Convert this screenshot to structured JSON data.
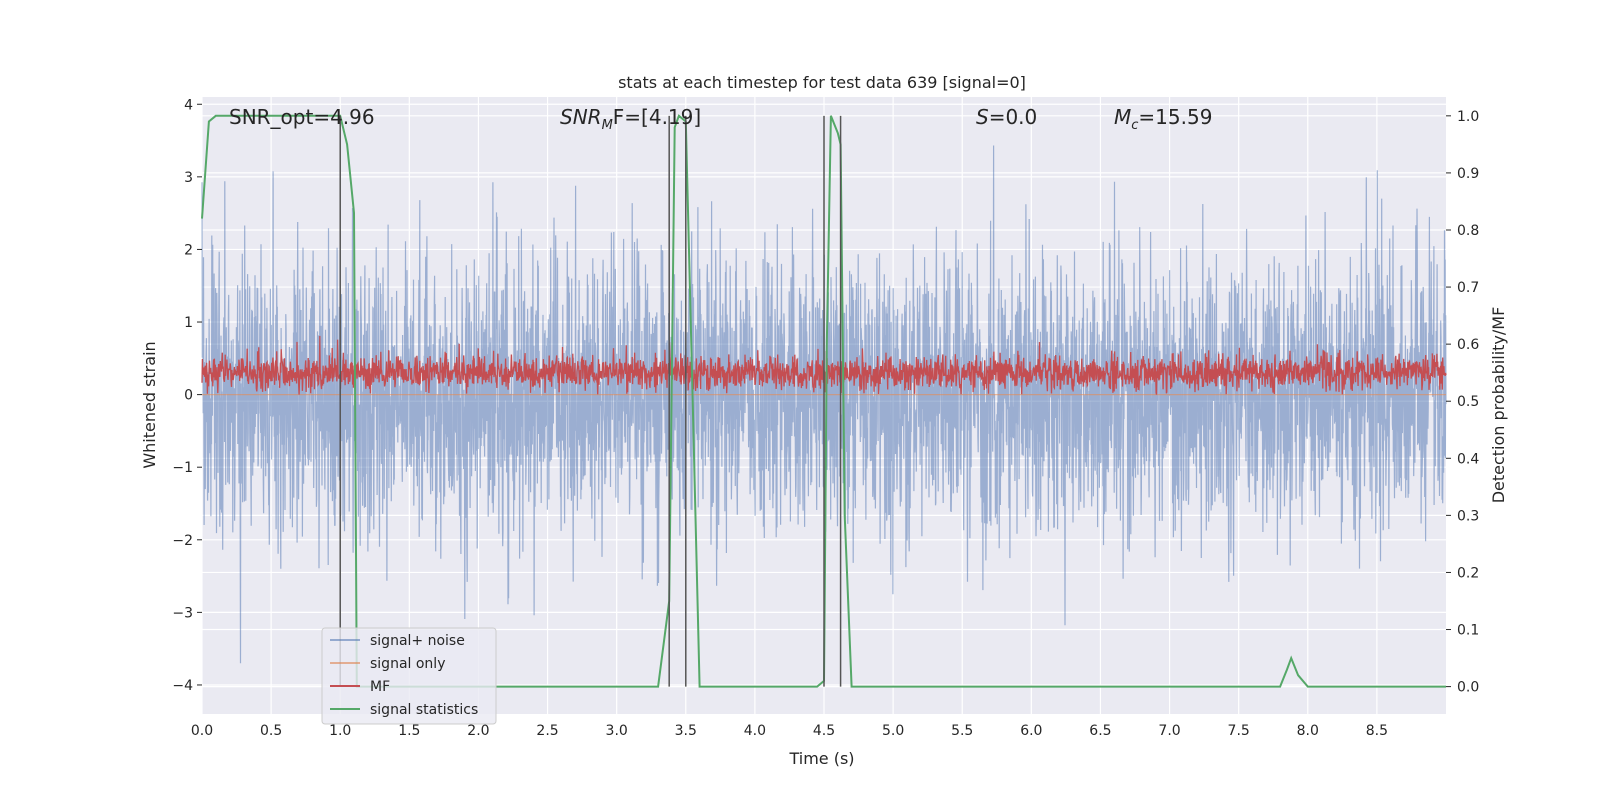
{
  "chart_data": {
    "type": "line",
    "title": "stats at each timestep for test data 639 [signal=0]",
    "xlabel": "Time (s)",
    "ylabel": "Whitened strain",
    "ylabel_right": "Detection probability/MF",
    "xlim": [
      0,
      9.0
    ],
    "ylim": [
      -4.4,
      4.1
    ],
    "ylim_right": [
      -0.048,
      1.033
    ],
    "x_ticks": [
      "0.0",
      "0.5",
      "1.0",
      "1.5",
      "2.0",
      "2.5",
      "3.0",
      "3.5",
      "4.0",
      "4.5",
      "5.0",
      "5.5",
      "6.0",
      "6.5",
      "7.0",
      "7.5",
      "8.0",
      "8.5"
    ],
    "x_tick_values": [
      0,
      0.5,
      1,
      1.5,
      2,
      2.5,
      3,
      3.5,
      4,
      4.5,
      5,
      5.5,
      6,
      6.5,
      7,
      7.5,
      8,
      8.5
    ],
    "y_ticks": [
      "4",
      "3",
      "2",
      "1",
      "0",
      "−1",
      "−2",
      "−3",
      "−4"
    ],
    "y_tick_values": [
      4,
      3,
      2,
      1,
      0,
      -1,
      -2,
      -3,
      -4
    ],
    "y_ticks_right": [
      "1.0",
      "0.9",
      "0.8",
      "0.7",
      "0.6",
      "0.5",
      "0.4",
      "0.3",
      "0.2",
      "0.1",
      "0.0"
    ],
    "y_tick_values_right": [
      1.0,
      0.9,
      0.8,
      0.7,
      0.6,
      0.5,
      0.4,
      0.3,
      0.2,
      0.1,
      0.0
    ],
    "grid": true,
    "legend_position": "lower-left",
    "annotations": [
      {
        "id": "snr-opt",
        "text": "SNR_opt=4.96",
        "x": 0.2,
        "y": 3.85
      },
      {
        "id": "snr-mf",
        "text": "SNR_MF=[4.19]",
        "x": 2.6,
        "y": 3.85
      },
      {
        "id": "s",
        "text": "S=0.0",
        "x": 5.62,
        "y": 3.85
      },
      {
        "id": "mc",
        "text": "M_c=15.59",
        "x": 6.62,
        "y": 3.85
      }
    ],
    "annotation_parts": {
      "snr_mf_base": "SNR",
      "snr_mf_sub": "M",
      "snr_mf_rest": "F=[4.19]",
      "s_sym": "S",
      "s_rest": "=0.0",
      "mc_base": "M",
      "mc_sub": "c",
      "mc_rest": "=15.59"
    },
    "vertical_lines": [
      1.0,
      3.38,
      3.5,
      4.5,
      4.62
    ],
    "series": [
      {
        "name": "signal+ noise",
        "color": "#4c72b0",
        "axis": "left",
        "description_values": "noise-like strain, amplitude envelope ±2, spikes to ±3.8",
        "envelope": {
          "x": [
            0,
            9.0
          ],
          "low": -2.0,
          "high": 2.2,
          "spike_max": 3.8,
          "spike_min": -3.7
        }
      },
      {
        "name": "signal only",
        "color": "#dd8452",
        "axis": "left",
        "values_flat": 0
      },
      {
        "name": "MF",
        "color": "#c44e52",
        "axis": "left",
        "envelope": {
          "x": [
            0,
            9.0
          ],
          "low": 0.0,
          "high": 0.6,
          "spike_max": 0.95
        }
      },
      {
        "name": "signal statistics",
        "color": "#55a868",
        "axis": "right",
        "x": [
          0.0,
          0.05,
          0.1,
          0.2,
          0.5,
          0.8,
          0.95,
          1.0,
          1.05,
          1.1,
          1.12,
          1.2,
          1.5,
          2.0,
          2.5,
          3.0,
          3.3,
          3.38,
          3.42,
          3.45,
          3.5,
          3.55,
          3.6,
          4.0,
          4.45,
          4.5,
          4.52,
          4.55,
          4.6,
          4.62,
          4.65,
          4.7,
          5.0,
          6.0,
          7.0,
          7.8,
          7.85,
          7.88,
          7.93,
          8.0,
          8.5,
          9.0
        ],
        "values": [
          0.82,
          0.99,
          1.0,
          1.0,
          1.0,
          1.0,
          1.0,
          1.0,
          0.95,
          0.83,
          0.0,
          0.0,
          0.0,
          0.0,
          0.0,
          0.0,
          0.0,
          0.15,
          0.98,
          1.0,
          0.99,
          0.5,
          0.0,
          0.0,
          0.0,
          0.01,
          0.6,
          1.0,
          0.97,
          0.95,
          0.3,
          0.0,
          0.0,
          0.0,
          0.0,
          0.0,
          0.03,
          0.05,
          0.02,
          0.0,
          0.0,
          0.0
        ]
      }
    ]
  }
}
